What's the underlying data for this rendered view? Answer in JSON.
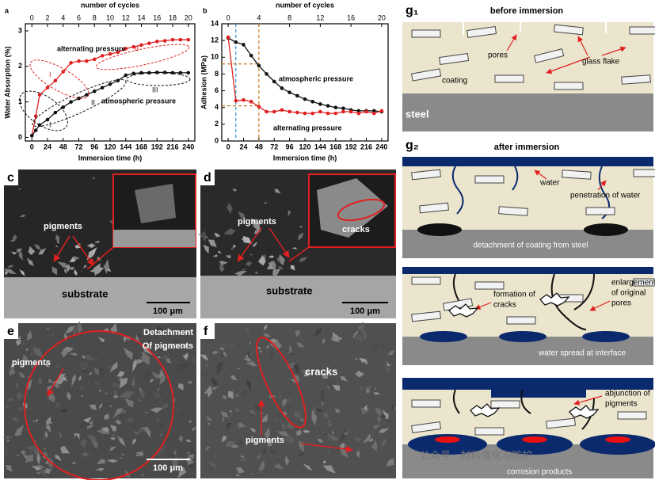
{
  "chart_data": [
    {
      "type": "line",
      "panel": "a",
      "x2label": "number of cycles",
      "xlabel": "Immersion time (h)",
      "ylabel": "Water Absorption (%)",
      "x": [
        0,
        6,
        12,
        24,
        36,
        48,
        60,
        72,
        84,
        96,
        108,
        120,
        132,
        144,
        156,
        168,
        180,
        192,
        204,
        216,
        228,
        240
      ],
      "series": [
        {
          "name": "alternating pressure",
          "color": "#e02020",
          "values": [
            0.05,
            0.6,
            1.2,
            1.4,
            1.6,
            1.85,
            2.1,
            2.15,
            2.15,
            2.2,
            2.3,
            2.35,
            2.4,
            2.5,
            2.55,
            2.6,
            2.65,
            2.7,
            2.72,
            2.75,
            2.75,
            2.75
          ]
        },
        {
          "name": "atmospheric pressure",
          "color": "#111111",
          "values": [
            0.05,
            0.2,
            0.35,
            0.5,
            0.7,
            0.85,
            1.0,
            1.1,
            1.2,
            1.3,
            1.4,
            1.5,
            1.6,
            1.75,
            1.8,
            1.82,
            1.82,
            1.83,
            1.83,
            1.82,
            1.82,
            1.82
          ]
        }
      ],
      "annotations": [
        "I",
        "II",
        "II",
        "I",
        "III"
      ],
      "xlim": [
        -10,
        250
      ],
      "xticks": [
        0,
        24,
        48,
        72,
        96,
        120,
        144,
        168,
        192,
        216,
        240
      ],
      "x2lim": [
        -0.833,
        20.833
      ],
      "x2ticks": [
        0,
        2,
        4,
        6,
        8,
        10,
        12,
        14,
        16,
        18,
        20
      ],
      "ylim": [
        -0.1,
        3.2
      ],
      "yticks": [
        0,
        1,
        2,
        3
      ]
    },
    {
      "type": "line",
      "panel": "b",
      "x2label": "number of cycles",
      "xlabel": "Immersion time (h)",
      "ylabel": "Adhesion (MPa)",
      "x": [
        0,
        12,
        24,
        36,
        48,
        60,
        72,
        84,
        96,
        108,
        120,
        132,
        144,
        156,
        168,
        180,
        192,
        204,
        216,
        228,
        240
      ],
      "series": [
        {
          "name": "atmospheric pressure",
          "color": "#111111",
          "values": [
            12.3,
            11.8,
            11.5,
            10.2,
            9.0,
            8.0,
            7.1,
            6.3,
            5.8,
            5.4,
            5.0,
            4.7,
            4.4,
            4.2,
            4.0,
            3.9,
            3.7,
            3.6,
            3.6,
            3.6,
            3.5
          ]
        },
        {
          "name": "alternating pressure",
          "color": "#e02020",
          "values": [
            12.4,
            4.8,
            4.9,
            4.7,
            4.1,
            3.5,
            3.5,
            3.7,
            3.5,
            3.4,
            3.3,
            3.3,
            3.5,
            3.3,
            3.3,
            3.5,
            3.5,
            3.3,
            3.5,
            3.3,
            3.6
          ]
        }
      ],
      "ref_lines": [
        {
          "axis": "x",
          "value": 12,
          "color": "#2a8fd6"
        },
        {
          "axis": "x",
          "value": 48,
          "color": "#c8781e"
        },
        {
          "axis": "y",
          "value": 9.2,
          "color": "#c8781e"
        },
        {
          "axis": "y",
          "value": 4.2,
          "color": "#c8781e"
        }
      ],
      "xlim": [
        -10,
        250
      ],
      "xticks": [
        0,
        24,
        48,
        72,
        96,
        120,
        144,
        168,
        192,
        216,
        240
      ],
      "x2lim": [
        -0.833,
        20.833
      ],
      "x2ticks": [
        0,
        4,
        8,
        12,
        16,
        20
      ],
      "ylim": [
        0,
        14
      ],
      "yticks": [
        0,
        2,
        4,
        6,
        8,
        10,
        12,
        14
      ]
    }
  ],
  "micrographs": [
    {
      "panel": "c",
      "labels": [
        "pigments",
        "substrate"
      ],
      "scale": "100 μm"
    },
    {
      "panel": "d",
      "labels": [
        "pigments",
        "substrate",
        "cracks"
      ],
      "scale": "100 μm"
    },
    {
      "panel": "e",
      "labels": [
        "Detachment",
        "Of pigments",
        "pigments"
      ],
      "scale": "100 μm"
    },
    {
      "panel": "f",
      "labels": [
        "cracks",
        "pigments"
      ]
    }
  ],
  "schematic": {
    "before": {
      "panel": "g₁",
      "title": "before immersion",
      "labels": [
        "pores",
        "glass flake",
        "coating",
        "steel"
      ]
    },
    "after": {
      "panel": "g₂",
      "title": "after immersion",
      "stages": [
        {
          "labels": [
            "water",
            "penetration of water",
            "detachment of coating from steel"
          ]
        },
        {
          "labels": [
            "formation of",
            "cracks",
            "enlargement",
            "of original",
            "pores",
            "water spread at interface"
          ]
        },
        {
          "labels": [
            "abjunction of",
            "pigments",
            "corrosion products"
          ]
        }
      ]
    }
  },
  "watermark": "公众号 · 材料强化与防护"
}
